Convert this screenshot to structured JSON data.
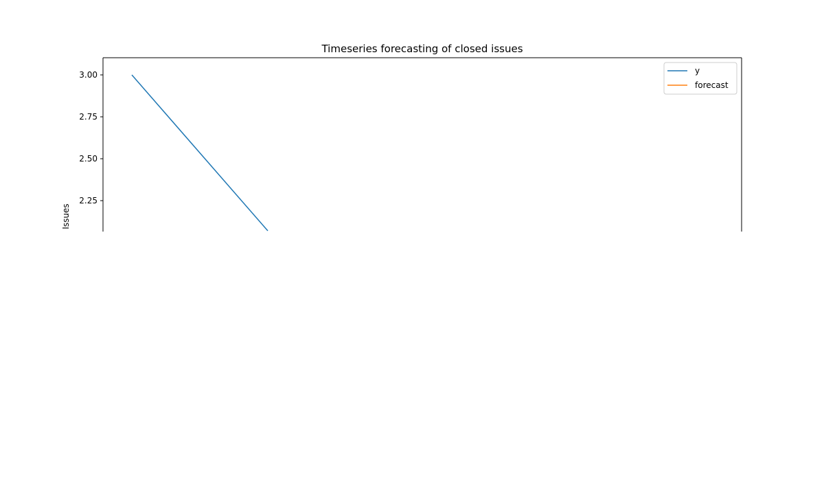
{
  "chart_data": {
    "type": "line",
    "title": "Timeseries forecasting of closed issues",
    "xlabel": "",
    "ylabel": "Issues",
    "ylim": [
      2.08,
      3.1
    ],
    "y_ticks": [
      3.0,
      2.75,
      2.5,
      2.25
    ],
    "y_tick_labels": [
      "3.00",
      "2.75",
      "2.50",
      "2.25"
    ],
    "x": [
      0,
      1
    ],
    "xlim": [
      -0.2,
      4.5
    ],
    "series": [
      {
        "name": "y",
        "color": "#1f77b4",
        "x": [
          0,
          1
        ],
        "values": [
          3.0,
          2.07
        ]
      },
      {
        "name": "forecast",
        "color": "#ff7f0e",
        "x": [],
        "values": []
      }
    ],
    "legend_placement": "top-right",
    "grid": false
  }
}
